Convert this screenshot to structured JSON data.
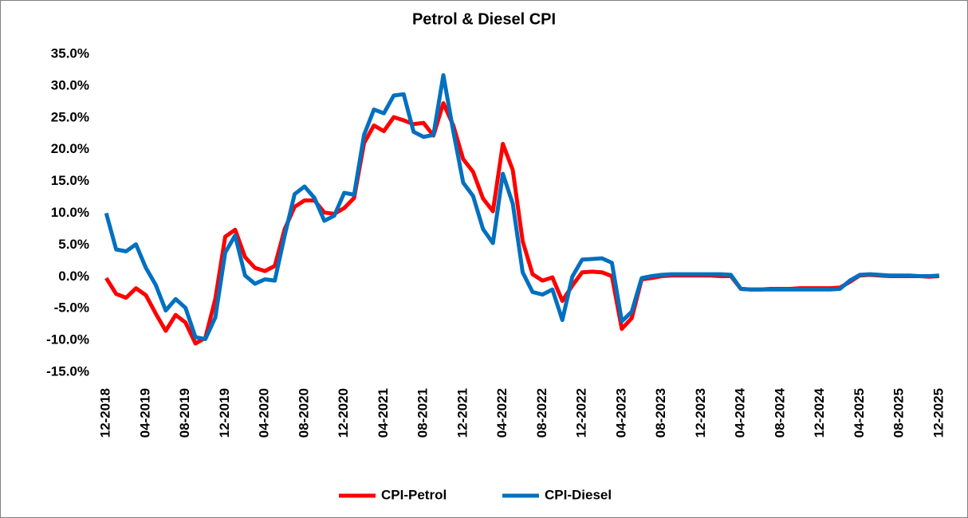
{
  "chart_data": {
    "type": "line",
    "title": "Petrol & Diesel CPI",
    "categories": [
      "12-2018",
      null,
      null,
      null,
      "04-2019",
      null,
      null,
      null,
      "08-2019",
      null,
      null,
      null,
      "12-2019",
      null,
      null,
      null,
      "04-2020",
      null,
      null,
      null,
      "08-2020",
      null,
      null,
      null,
      "12-2020",
      null,
      null,
      null,
      "04-2021",
      null,
      null,
      null,
      "08-2021",
      null,
      null,
      null,
      "12-2021",
      null,
      null,
      null,
      "04-2022",
      null,
      null,
      null,
      "08-2022",
      null,
      null,
      null,
      "12-2022",
      null,
      null,
      null,
      "04-2023",
      null,
      null,
      null,
      "08-2023",
      null,
      null,
      null,
      "12-2023",
      null,
      null,
      null,
      "04-2024",
      null,
      null,
      null,
      "08-2024",
      null,
      null,
      null,
      "12-2024",
      null,
      null,
      null,
      "04-2025",
      null,
      null,
      null,
      "08-2025",
      null,
      null,
      null,
      "12-2025"
    ],
    "series": [
      {
        "name": "CPI-Petrol",
        "color": "#ff0000",
        "values": [
          -0.2,
          -2.7,
          -3.3,
          -1.8,
          -2.9,
          -5.8,
          -8.5,
          -6,
          -7.2,
          -10.5,
          -9.6,
          -3.5,
          6.3,
          7.4,
          3.1,
          1.4,
          0.9,
          1.7,
          7.5,
          11,
          12,
          12,
          10.1,
          9.9,
          10.8,
          12.4,
          21,
          23.8,
          22.9,
          25.1,
          24.6,
          24,
          24.2,
          22.2,
          27.3,
          23.8,
          18.5,
          16.5,
          12.3,
          10.3,
          20.9,
          16.8,
          5.6,
          0.4,
          -0.6,
          -0.1,
          -3.8,
          -1.4,
          0.7,
          0.8,
          0.7,
          0.1,
          -8.2,
          -6.5,
          -0.4,
          -0.2,
          0.1,
          0.2,
          0.2,
          0.2,
          0.2,
          0.2,
          0.1,
          0.1,
          -1.9,
          -2.0,
          -2.0,
          -1.9,
          -1.9,
          -1.9,
          -1.8,
          -1.8,
          -1.8,
          -1.8,
          -1.7,
          -0.8,
          0.2,
          0.3,
          0.2,
          0.1,
          0.1,
          0.1,
          0.1,
          0.0,
          0.1
        ]
      },
      {
        "name": "CPI-Diesel",
        "color": "#0070c0",
        "values": [
          10,
          4.3,
          4,
          5.1,
          1.4,
          -1.3,
          -5.3,
          -3.5,
          -4.9,
          -9.5,
          -9.8,
          -6.4,
          3.8,
          6.5,
          0.2,
          -1.1,
          -0.4,
          -0.6,
          6.5,
          13,
          14.2,
          12.4,
          8.8,
          9.6,
          13.2,
          12.9,
          22.3,
          26.3,
          25.7,
          28.5,
          28.7,
          22.8,
          22,
          22.3,
          31.7,
          22.9,
          14.8,
          12.7,
          7.5,
          5.3,
          16.2,
          11.5,
          0.7,
          -2.4,
          -2.8,
          -2.0,
          -6.8,
          0.0,
          2.7,
          2.8,
          2.9,
          2.2,
          -7.0,
          -5.5,
          -0.2,
          0.1,
          0.3,
          0.4,
          0.4,
          0.4,
          0.4,
          0.4,
          0.4,
          0.3,
          -1.9,
          -2.0,
          -2.0,
          -2.0,
          -2.0,
          -2.0,
          -2.0,
          -2.0,
          -2.0,
          -2.0,
          -1.9,
          -0.6,
          0.3,
          0.4,
          0.3,
          0.2,
          0.2,
          0.2,
          0.1,
          0.1,
          0.2
        ]
      }
    ],
    "ylim": [
      -15,
      35
    ],
    "yticks": [
      {
        "value": -15,
        "label": "-15.0%"
      },
      {
        "value": -10,
        "label": "-10.0%"
      },
      {
        "value": -5,
        "label": "-5.0%"
      },
      {
        "value": 0,
        "label": "0.0%"
      },
      {
        "value": 5,
        "label": "5.0%"
      },
      {
        "value": 10,
        "label": "10.0%"
      },
      {
        "value": 15,
        "label": "15.0%"
      },
      {
        "value": 20,
        "label": "20.0%"
      },
      {
        "value": 25,
        "label": "25.0%"
      },
      {
        "value": 30,
        "label": "30.0%"
      },
      {
        "value": 35,
        "label": "35.0%"
      }
    ],
    "legend": "bottom"
  }
}
